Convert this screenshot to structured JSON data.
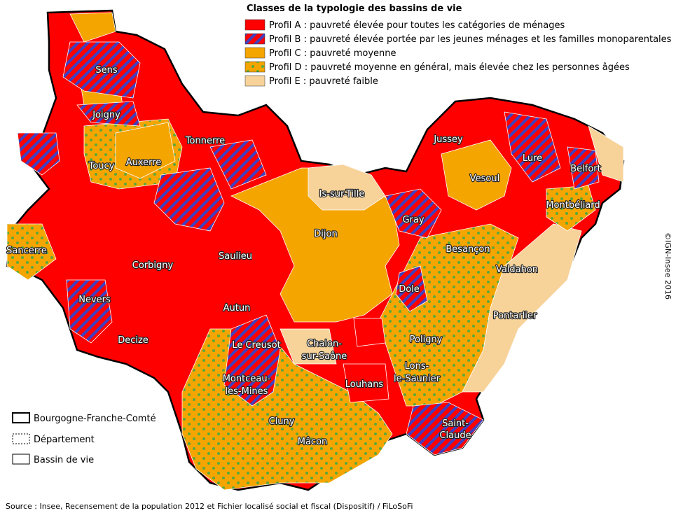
{
  "legend": {
    "title": "Classes de la typologie des bassins de vie",
    "items": [
      "Profil A : pauvreté élevée pour toutes les catégories de ménages",
      "Profil B : pauvreté élevée portée par les jeunes ménages et les familles monoparentales",
      "Profil C : pauvreté moyenne",
      "Profil D : pauvreté moyenne en général, mais élevée chez les personnes âgées",
      "Profil E : pauvreté faible"
    ]
  },
  "boundaries": [
    "Bourgogne-Franche-Comté",
    "Département",
    "Bassin de vie"
  ],
  "places": [
    "Sens",
    "Joigny",
    "Toucy",
    "Auxerre",
    "Tonnerre",
    "Is-sur-Tille",
    "Jussey",
    "Vesoul",
    "Lure",
    "Belfort",
    "Montbéliard",
    "Gray",
    "Dijon",
    "Besançon",
    "Valdahon",
    "Sancerre",
    "Corbigny",
    "Saulieu",
    "Nevers",
    "Dole",
    "Autun",
    "Decize",
    "Le Creusot",
    [
      "Chalon-",
      "sur-Saône"
    ],
    "Poligny",
    "Pontarlier",
    [
      "Lons-",
      "le-Saunier"
    ],
    [
      "Montceau-",
      "les-Mines"
    ],
    "Louhans",
    [
      "Saint-",
      "Claude"
    ],
    "Cluny",
    "Mâcon"
  ],
  "copyright": "©IGN-Insee 2016",
  "source": "Source : Insee, Recensement de la population 2012 et Fichier localisé social et fiscal (Dispositif) / FiLoSoFi"
}
